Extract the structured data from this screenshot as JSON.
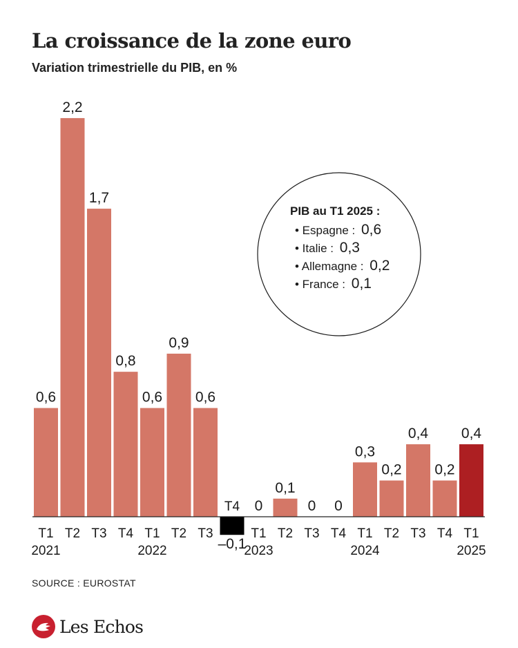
{
  "header": {
    "title": "La croissance de la zone euro",
    "subtitle": "Variation trimestrielle du PIB, en %"
  },
  "chart_data": {
    "type": "bar",
    "categories": [
      "T1",
      "T2",
      "T3",
      "T4",
      "T1",
      "T2",
      "T3",
      "T4",
      "T1",
      "T2",
      "T3",
      "T4",
      "T1",
      "T2",
      "T3",
      "T4",
      "T1"
    ],
    "years": [
      {
        "label": "2021",
        "index": 0
      },
      {
        "label": "2022",
        "index": 4
      },
      {
        "label": "2023",
        "index": 8
      },
      {
        "label": "2024",
        "index": 12
      },
      {
        "label": "2025",
        "index": 16
      }
    ],
    "values": [
      0.6,
      2.2,
      1.7,
      0.8,
      0.6,
      0.9,
      0.6,
      -0.1,
      0,
      0.1,
      0,
      0,
      0.3,
      0.2,
      0.4,
      0.2,
      0.4
    ],
    "value_labels": [
      "0,6",
      "2,2",
      "1,7",
      "0,8",
      "0,6",
      "0,9",
      "0,6",
      "–0,1",
      "0",
      "0,1",
      "0",
      "0",
      "0,3",
      "0,2",
      "0,4",
      "0,2",
      "0,4"
    ],
    "colors": {
      "default": "#d47767",
      "negative": "#000000",
      "highlight": "#ad1f22",
      "axis": "#222222"
    },
    "highlight_index": 16,
    "ylim": [
      -0.1,
      2.2
    ],
    "annotation": {
      "title": "PIB au T1 2025 :",
      "items": [
        {
          "country": "• Espagne :",
          "value": "0,6"
        },
        {
          "country": "• Italie :",
          "value": "0,3"
        },
        {
          "country": "• Allemagne :",
          "value": "0,2"
        },
        {
          "country": "• France :",
          "value": "0,1"
        }
      ]
    }
  },
  "footer": {
    "source": "SOURCE : EUROSTAT",
    "brand": "Les Echos",
    "brand_color": "#c8202f"
  }
}
